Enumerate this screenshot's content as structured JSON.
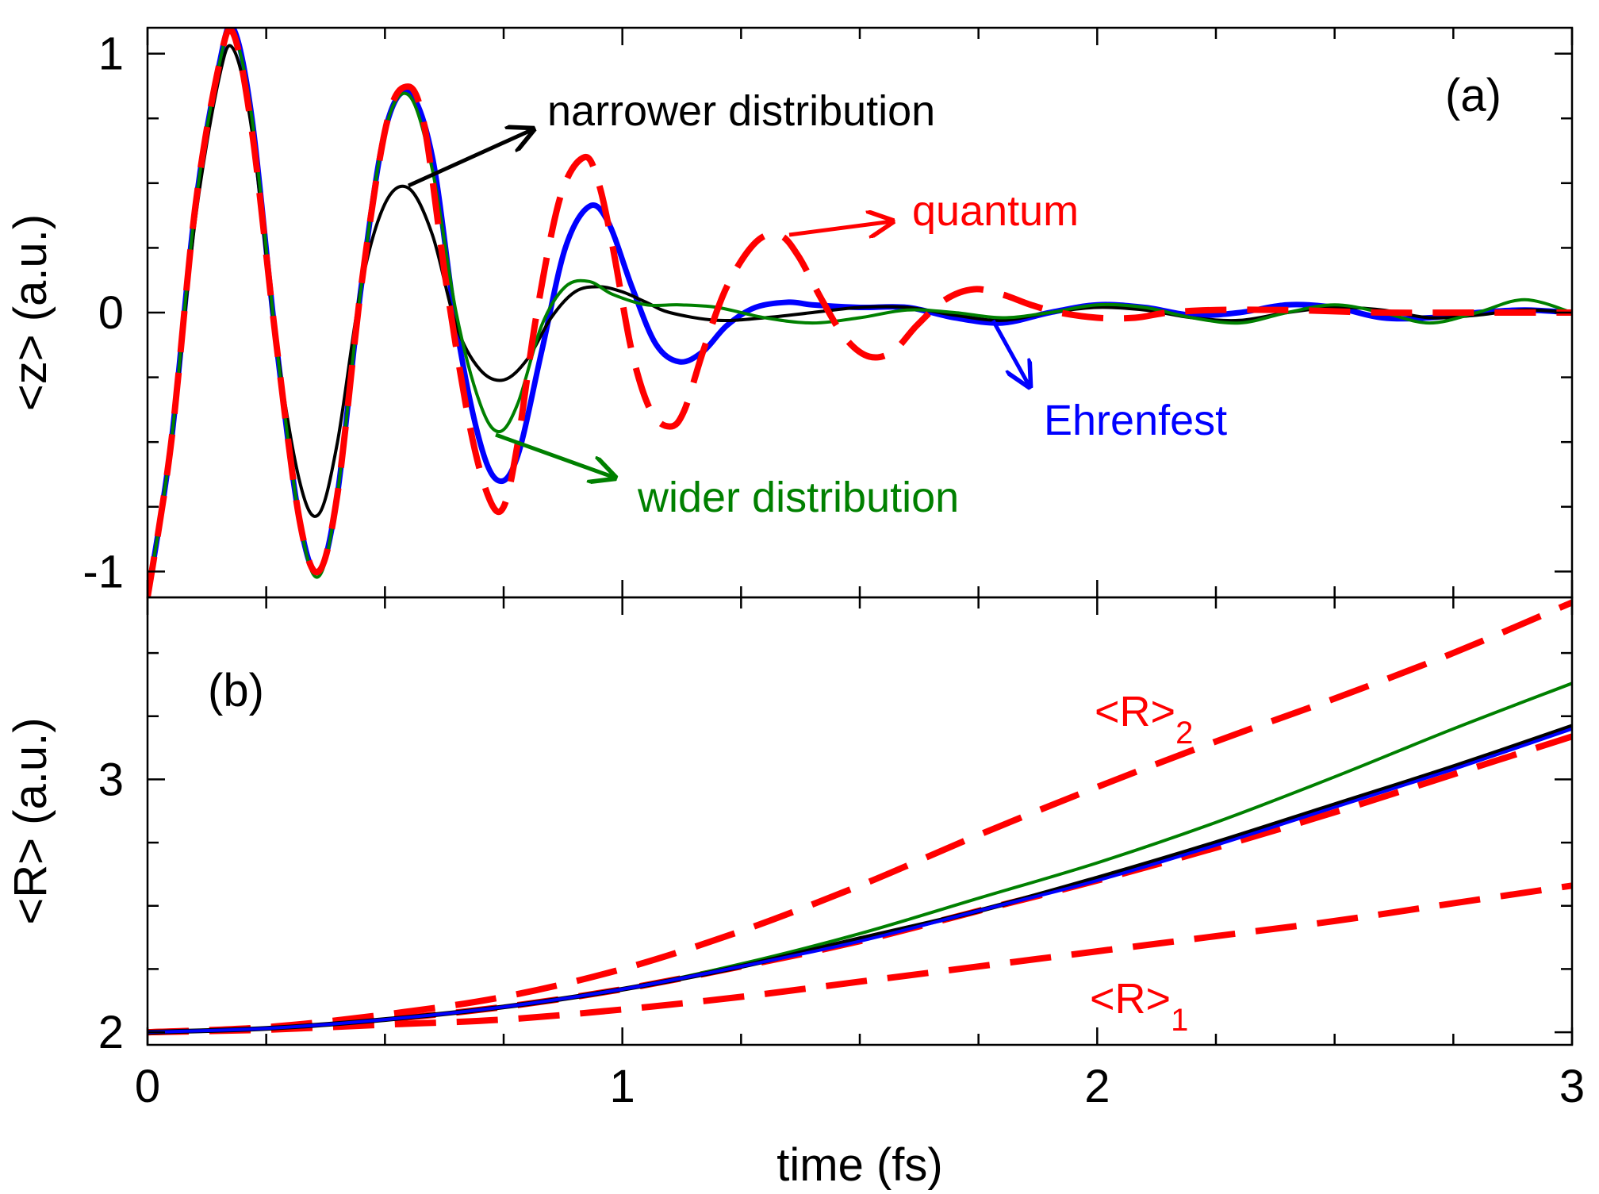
{
  "chart_data": [
    {
      "type": "line",
      "panel_label": "(a)",
      "ylabel": "<z> (a.u.)",
      "xlim": [
        0,
        3
      ],
      "ylim": [
        -1.1,
        1.1
      ],
      "y_ticks": [
        -1,
        0,
        1
      ],
      "y_tick_labels": [
        "-1",
        "0",
        "1"
      ],
      "grid": false,
      "series": [
        {
          "name": "quantum",
          "color": "#ff0000",
          "style": "dashed",
          "x": [
            0,
            0.05,
            0.1,
            0.15,
            0.18,
            0.22,
            0.27,
            0.32,
            0.36,
            0.4,
            0.45,
            0.5,
            0.54,
            0.58,
            0.63,
            0.68,
            0.72,
            0.75,
            0.78,
            0.82,
            0.87,
            0.92,
            0.95,
            0.98,
            1.02,
            1.06,
            1.1,
            1.13,
            1.17,
            1.22,
            1.28,
            1.33,
            1.37,
            1.42,
            1.47,
            1.52,
            1.57,
            1.62,
            1.68,
            1.74,
            1.8,
            1.86,
            1.92,
            2.0,
            2.08,
            2.15,
            2.25,
            2.4,
            2.6,
            2.8,
            3.0
          ],
          "y": [
            -1.1,
            -0.5,
            0.4,
            0.95,
            1.08,
            0.7,
            -0.1,
            -0.8,
            -1.0,
            -0.7,
            0.1,
            0.7,
            0.87,
            0.75,
            0.1,
            -0.45,
            -0.72,
            -0.75,
            -0.5,
            0.0,
            0.45,
            0.6,
            0.5,
            0.25,
            -0.15,
            -0.38,
            -0.44,
            -0.38,
            -0.15,
            0.1,
            0.27,
            0.3,
            0.22,
            0.05,
            -0.1,
            -0.17,
            -0.15,
            -0.05,
            0.05,
            0.09,
            0.07,
            0.03,
            0.0,
            -0.02,
            -0.02,
            0.0,
            0.01,
            0.01,
            0.0,
            0.0,
            0.0
          ]
        },
        {
          "name": "Ehrenfest",
          "color": "#0000ff",
          "style": "solid",
          "x": [
            0,
            0.05,
            0.1,
            0.15,
            0.18,
            0.22,
            0.27,
            0.32,
            0.36,
            0.4,
            0.45,
            0.5,
            0.55,
            0.6,
            0.65,
            0.7,
            0.74,
            0.78,
            0.83,
            0.88,
            0.93,
            0.97,
            1.02,
            1.07,
            1.12,
            1.17,
            1.22,
            1.28,
            1.35,
            1.4,
            1.5,
            1.6,
            1.7,
            1.8,
            1.9,
            2.0,
            2.1,
            2.2,
            2.3,
            2.4,
            2.5,
            2.6,
            2.7,
            2.8,
            2.9,
            3.0
          ],
          "y": [
            -1.1,
            -0.5,
            0.4,
            0.95,
            1.1,
            0.75,
            -0.1,
            -0.8,
            -1.0,
            -0.7,
            0.1,
            0.7,
            0.85,
            0.6,
            -0.05,
            -0.5,
            -0.65,
            -0.55,
            -0.15,
            0.25,
            0.41,
            0.35,
            0.1,
            -0.12,
            -0.19,
            -0.15,
            -0.05,
            0.02,
            0.04,
            0.03,
            0.02,
            0.02,
            -0.02,
            -0.04,
            0.0,
            0.03,
            0.02,
            -0.01,
            0.0,
            0.03,
            0.02,
            -0.02,
            -0.02,
            0.0,
            0.01,
            0.0
          ]
        },
        {
          "name": "narrower distribution",
          "color": "#000000",
          "style": "solid",
          "x": [
            0,
            0.05,
            0.1,
            0.15,
            0.18,
            0.22,
            0.27,
            0.32,
            0.36,
            0.4,
            0.45,
            0.5,
            0.55,
            0.6,
            0.65,
            0.7,
            0.75,
            0.8,
            0.85,
            0.9,
            0.95,
            1.0,
            1.05,
            1.1,
            1.2,
            1.3,
            1.4,
            1.5,
            1.6,
            1.7,
            1.8,
            1.9,
            2.0,
            2.1,
            2.2,
            2.3,
            2.4,
            2.5,
            2.6,
            2.7,
            2.8,
            2.9,
            3.0
          ],
          "y": [
            -1.1,
            -0.5,
            0.35,
            0.9,
            1.02,
            0.7,
            -0.1,
            -0.65,
            -0.78,
            -0.5,
            0.1,
            0.42,
            0.48,
            0.3,
            -0.05,
            -0.22,
            -0.26,
            -0.18,
            -0.02,
            0.08,
            0.1,
            0.08,
            0.04,
            0.0,
            -0.03,
            -0.02,
            0.0,
            0.02,
            0.02,
            -0.01,
            -0.03,
            0.0,
            0.02,
            0.01,
            -0.02,
            -0.03,
            0.0,
            0.02,
            0.01,
            -0.02,
            -0.01,
            0.01,
            0.0
          ]
        },
        {
          "name": "wider distribution",
          "color": "#008000",
          "style": "solid",
          "x": [
            0,
            0.05,
            0.1,
            0.15,
            0.18,
            0.22,
            0.27,
            0.32,
            0.36,
            0.4,
            0.45,
            0.5,
            0.55,
            0.6,
            0.65,
            0.7,
            0.74,
            0.78,
            0.83,
            0.88,
            0.93,
            0.98,
            1.05,
            1.12,
            1.2,
            1.3,
            1.4,
            1.5,
            1.6,
            1.7,
            1.8,
            1.9,
            2.0,
            2.1,
            2.2,
            2.3,
            2.4,
            2.5,
            2.6,
            2.7,
            2.8,
            2.9,
            3.0
          ],
          "y": [
            -1.1,
            -0.5,
            0.4,
            0.95,
            1.08,
            0.75,
            -0.1,
            -0.8,
            -1.02,
            -0.7,
            0.1,
            0.7,
            0.84,
            0.55,
            0.0,
            -0.35,
            -0.46,
            -0.35,
            -0.05,
            0.1,
            0.12,
            0.07,
            0.03,
            0.03,
            0.02,
            -0.02,
            -0.04,
            -0.02,
            0.01,
            0.0,
            -0.02,
            0.0,
            0.03,
            0.02,
            -0.02,
            -0.04,
            0.0,
            0.03,
            0.0,
            -0.04,
            0.0,
            0.05,
            0.0
          ]
        }
      ],
      "annotations": [
        {
          "text": "narrower distribution",
          "color": "#000000"
        },
        {
          "text": "quantum",
          "color": "#ff0000"
        },
        {
          "text": "Ehrenfest",
          "color": "#0000ff"
        },
        {
          "text": "wider distribution",
          "color": "#008000"
        }
      ]
    },
    {
      "type": "line",
      "panel_label": "(b)",
      "ylabel": "<R> (a.u.)",
      "xlabel": "time (fs)",
      "xlim": [
        0,
        3
      ],
      "ylim": [
        1.95,
        3.72
      ],
      "x_ticks": [
        0,
        1,
        2,
        3
      ],
      "x_tick_labels": [
        "0",
        "1",
        "2",
        "3"
      ],
      "y_ticks": [
        2,
        3
      ],
      "y_tick_labels": [
        "2",
        "3"
      ],
      "grid": false,
      "series": [
        {
          "name": "<R>",
          "color": "#ff0000",
          "style": "dashed",
          "x": [
            0,
            0.25,
            0.5,
            0.75,
            1.0,
            1.25,
            1.5,
            1.75,
            2.0,
            2.25,
            2.5,
            2.75,
            3.0
          ],
          "y": [
            2.0,
            2.015,
            2.05,
            2.1,
            2.17,
            2.26,
            2.36,
            2.48,
            2.6,
            2.73,
            2.87,
            3.02,
            3.17
          ]
        },
        {
          "name": "<R>2",
          "color": "#ff0000",
          "style": "dashed",
          "x": [
            0,
            0.25,
            0.5,
            0.75,
            1.0,
            1.25,
            1.5,
            1.75,
            2.0,
            2.25,
            2.5,
            2.75,
            3.0
          ],
          "y": [
            2.0,
            2.02,
            2.07,
            2.14,
            2.25,
            2.4,
            2.58,
            2.78,
            2.97,
            3.15,
            3.32,
            3.5,
            3.7
          ]
        },
        {
          "name": "<R>1",
          "color": "#ff0000",
          "style": "dashed",
          "x": [
            0,
            0.25,
            0.5,
            0.75,
            1.0,
            1.25,
            1.5,
            1.75,
            2.0,
            2.25,
            2.5,
            2.75,
            3.0
          ],
          "y": [
            2.0,
            2.01,
            2.03,
            2.05,
            2.09,
            2.14,
            2.2,
            2.26,
            2.32,
            2.38,
            2.44,
            2.51,
            2.58
          ]
        },
        {
          "name": "wider distribution",
          "color": "#008000",
          "style": "solid",
          "x": [
            0,
            0.25,
            0.5,
            0.75,
            1.0,
            1.25,
            1.5,
            1.75,
            2.0,
            2.25,
            2.5,
            2.75,
            3.0
          ],
          "y": [
            2.0,
            2.015,
            2.05,
            2.1,
            2.17,
            2.27,
            2.39,
            2.53,
            2.67,
            2.83,
            3.01,
            3.2,
            3.38
          ]
        },
        {
          "name": "narrower distribution",
          "color": "#000000",
          "style": "solid",
          "x": [
            0,
            0.25,
            0.5,
            0.75,
            1.0,
            1.25,
            1.5,
            1.75,
            2.0,
            2.25,
            2.5,
            2.75,
            3.0
          ],
          "y": [
            2.0,
            2.015,
            2.05,
            2.1,
            2.17,
            2.26,
            2.37,
            2.48,
            2.61,
            2.75,
            2.9,
            3.05,
            3.21
          ]
        },
        {
          "name": "Ehrenfest",
          "color": "#0000ff",
          "style": "solid",
          "x": [
            0,
            0.25,
            0.5,
            0.75,
            1.0,
            1.25,
            1.5,
            1.75,
            2.0,
            2.25,
            2.5,
            2.75,
            3.0
          ],
          "y": [
            2.0,
            2.015,
            2.05,
            2.1,
            2.17,
            2.26,
            2.36,
            2.48,
            2.6,
            2.74,
            2.89,
            3.04,
            3.2
          ]
        }
      ],
      "annotations": [
        {
          "text": "<R>",
          "sub": "2",
          "color": "#ff0000"
        },
        {
          "text": "<R>",
          "sub": "1",
          "color": "#ff0000"
        }
      ]
    }
  ]
}
